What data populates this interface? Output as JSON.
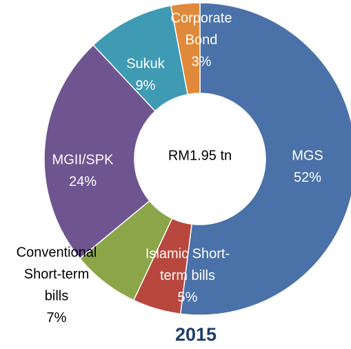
{
  "chart_data": {
    "type": "donut",
    "title": "2015",
    "center_label": "RM1.95 tn",
    "categories": [
      [
        "MGS"
      ],
      [
        "Islamic Short-",
        "term bills"
      ],
      [
        "Conventional",
        "Short-term",
        "bills"
      ],
      [
        "MGII/SPK"
      ],
      [
        "Sukuk"
      ],
      [
        "Corporate",
        "Bond"
      ]
    ],
    "values": [
      52,
      5,
      7,
      24,
      9,
      3
    ],
    "value_labels": [
      "52%",
      "5%",
      "7%",
      "24%",
      "9%",
      "3%"
    ],
    "colors": [
      "#4a71a8",
      "#b8473e",
      "#8ca549",
      "#6e5590",
      "#3f9ab4",
      "#e0893b"
    ]
  }
}
